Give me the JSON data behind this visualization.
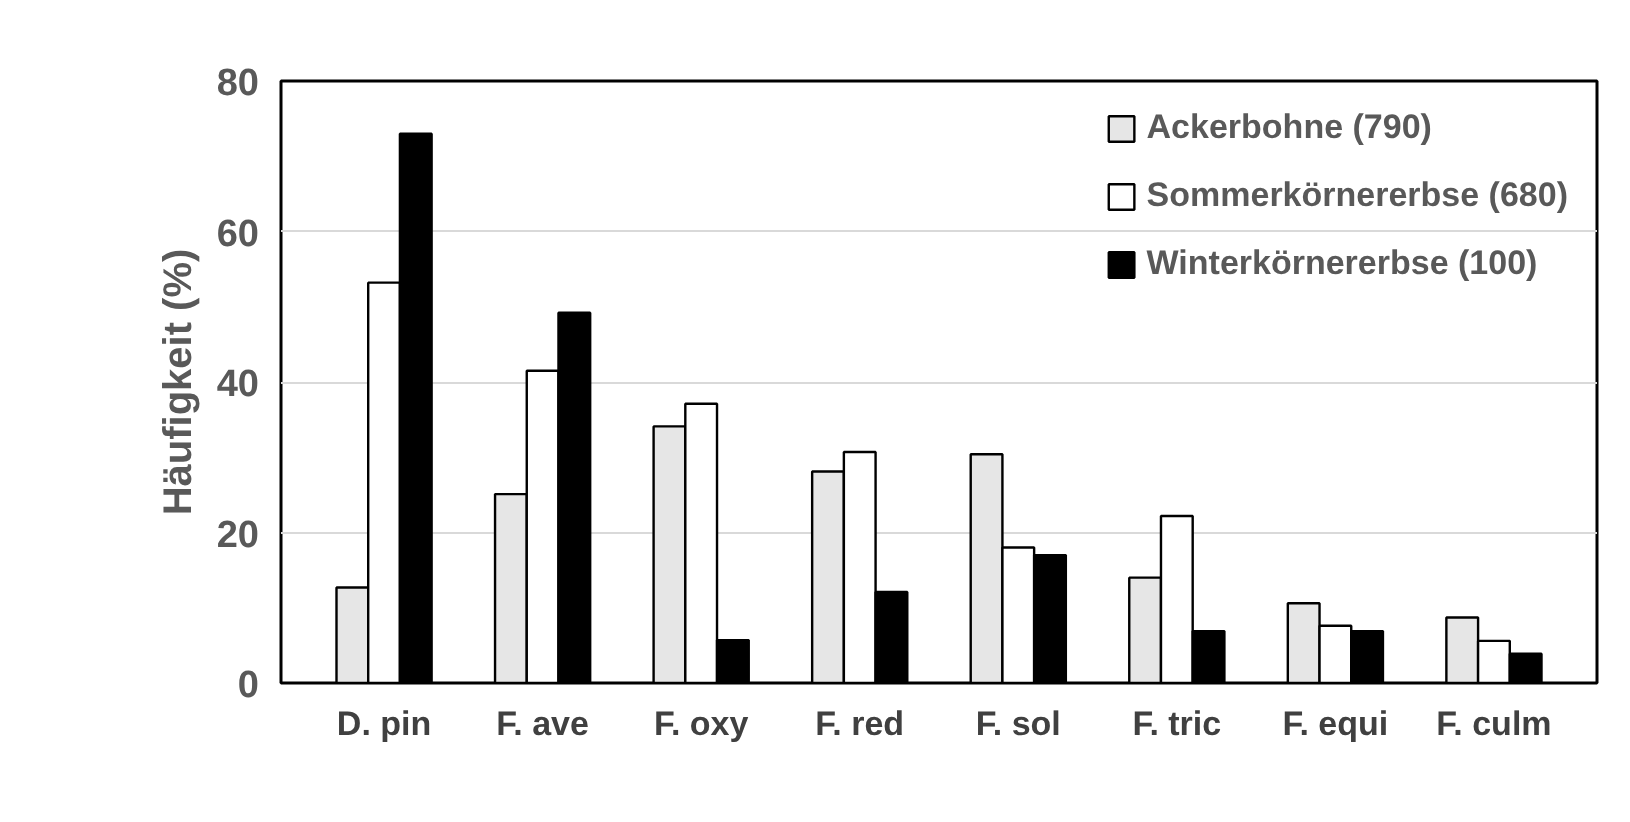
{
  "chart_data": {
    "type": "bar",
    "ylabel": "Häufigkeit (%)",
    "categories": [
      "D. pin",
      "F. ave",
      "F. oxy",
      "F. red",
      "F. sol",
      "F. tric",
      "F. equi",
      "F. culm"
    ],
    "series": [
      {
        "name": "Ackerbohne (790)",
        "color": "#e6e6e6",
        "values": [
          12.7,
          25.1,
          34.1,
          28.1,
          30.4,
          14.0,
          10.6,
          8.7
        ]
      },
      {
        "name": "Sommerkörnererbse (680)",
        "color": "#ffffff",
        "values": [
          53.2,
          41.5,
          37.1,
          30.7,
          18.0,
          22.2,
          7.6,
          5.6
        ]
      },
      {
        "name": "Winterkörnererbse (100)",
        "color": "#000000",
        "values": [
          73.0,
          49.2,
          5.7,
          12.1,
          17.0,
          6.9,
          6.9,
          3.9
        ]
      }
    ],
    "ylim": [
      0,
      80
    ],
    "yticks": [
      0,
      20,
      40,
      60,
      80
    ],
    "grid": "y",
    "legend": "top right"
  }
}
